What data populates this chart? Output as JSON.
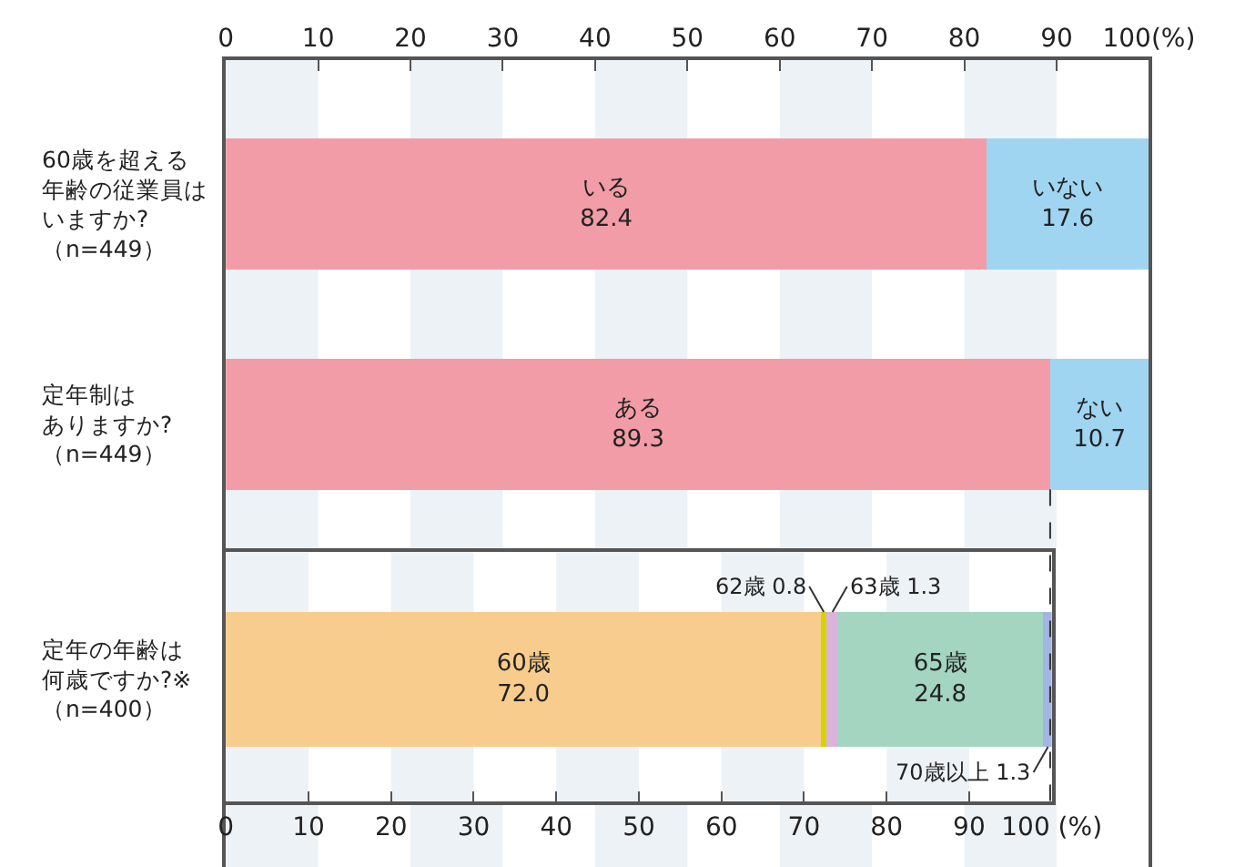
{
  "chart_data": [
    {
      "type": "bar",
      "orientation": "horizontal",
      "stacked": true,
      "legend": false,
      "grid": false,
      "categories": [
        "60歳を超える年齢の従業員はいますか?（n=449）",
        "定年制はありますか?（n=449）"
      ],
      "series": [
        {
          "color": "#f19ca6",
          "values": [
            82.4,
            89.3
          ],
          "value_labels": [
            "いる\n82.4",
            "ある\n89.3"
          ]
        },
        {
          "color": "#9fd5f1",
          "values": [
            17.6,
            10.7
          ],
          "value_labels": [
            "いない\n17.6",
            "ない\n10.7"
          ]
        }
      ],
      "xlim": [
        0,
        100
      ],
      "xticks": [
        0,
        10,
        20,
        30,
        40,
        50,
        60,
        70,
        80,
        90,
        {
          "value": 100,
          "label": "100(%)"
        }
      ],
      "bands": [
        {
          "axis": "x",
          "from": 0,
          "to": 10,
          "color": "#edf2f7"
        },
        {
          "axis": "x",
          "from": 20,
          "to": 30,
          "color": "#edf2f7"
        },
        {
          "axis": "x",
          "from": 40,
          "to": 50,
          "color": "#edf2f7"
        },
        {
          "axis": "x",
          "from": 60,
          "to": 70,
          "color": "#edf2f7"
        },
        {
          "axis": "x",
          "from": 80,
          "to": 90,
          "color": "#edf2f7"
        }
      ],
      "ref_lines": [
        {
          "axis": "x",
          "value": 89.3,
          "label": null,
          "line_style": "dashed",
          "color": "#333333"
        }
      ]
    },
    {
      "type": "bar",
      "orientation": "horizontal",
      "stacked": true,
      "legend": false,
      "grid": false,
      "categories": [
        "定年の年齢は何歳ですか?※（n=400）"
      ],
      "series": [
        {
          "name": "60歳",
          "color": "#f8cc8c",
          "values": [
            72.0
          ],
          "value_labels": [
            "72.0"
          ]
        },
        {
          "name": "62歳",
          "color": "#d4d400",
          "values": [
            0.8
          ],
          "value_labels": [
            "0.8"
          ]
        },
        {
          "name": "63歳",
          "color": "#d9b3dc",
          "values": [
            1.3
          ],
          "value_labels": [
            "1.3"
          ]
        },
        {
          "name": "65歳",
          "color": "#a3d5c0",
          "values": [
            24.8
          ],
          "value_labels": [
            "24.8"
          ]
        },
        {
          "name": "70歳以上",
          "color": "#a3b5e3",
          "values": [
            1.3
          ],
          "value_labels": [
            "1.3"
          ]
        }
      ],
      "xlim": [
        0,
        100
      ],
      "xticks": [
        0,
        10,
        20,
        30,
        40,
        50,
        60,
        70,
        80,
        90,
        {
          "value": 100,
          "label": "100 (%)"
        }
      ],
      "bands": [
        {
          "axis": "x",
          "from": 0,
          "to": 10,
          "color": "#edf2f7"
        },
        {
          "axis": "x",
          "from": 20,
          "to": 30,
          "color": "#edf2f7"
        },
        {
          "axis": "x",
          "from": 40,
          "to": 50,
          "color": "#edf2f7"
        },
        {
          "axis": "x",
          "from": 60,
          "to": 70,
          "color": "#edf2f7"
        },
        {
          "axis": "x",
          "from": 80,
          "to": 90,
          "color": "#edf2f7"
        }
      ]
    }
  ]
}
